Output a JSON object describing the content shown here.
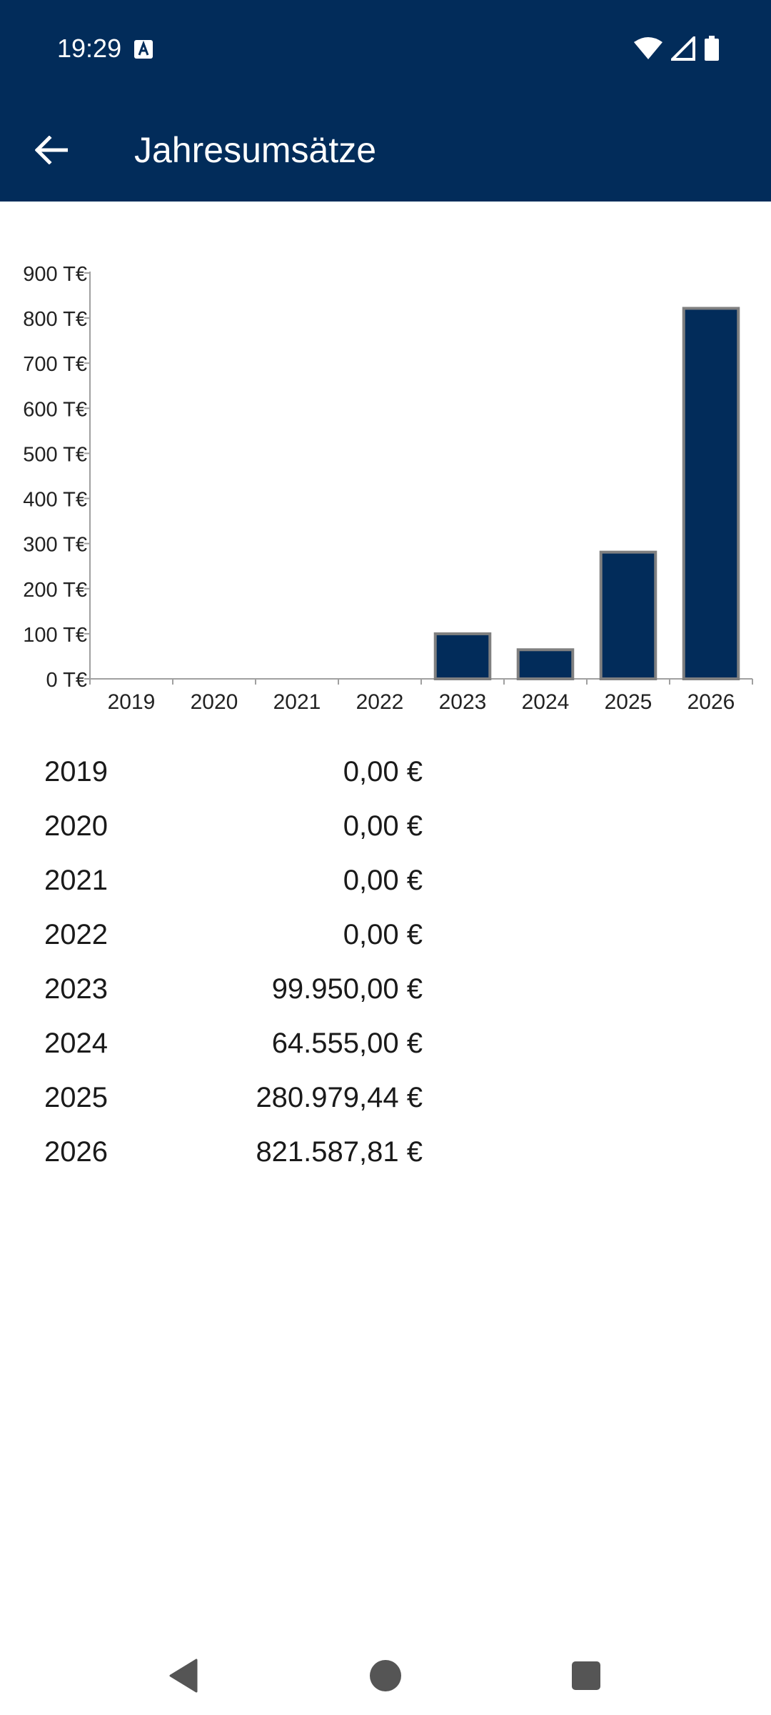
{
  "status_bar": {
    "time": "19:29"
  },
  "app_bar": {
    "title": "Jahresumsätze",
    "color": "#022c5a"
  },
  "chart_data": {
    "type": "bar",
    "categories": [
      "2019",
      "2020",
      "2021",
      "2022",
      "2023",
      "2024",
      "2025",
      "2026"
    ],
    "values": [
      0,
      0,
      0,
      0,
      99.95,
      64.555,
      280.97944,
      821.58781
    ],
    "ylim": [
      0,
      900
    ],
    "yticks": [
      "0 T€",
      "100 T€",
      "200 T€",
      "300 T€",
      "400 T€",
      "500 T€",
      "600 T€",
      "700 T€",
      "800 T€",
      "900 T€"
    ],
    "ytick_values": [
      0,
      100,
      200,
      300,
      400,
      500,
      600,
      700,
      800,
      900
    ],
    "bar_color": "#022c5a",
    "bar_border_color": "#808080",
    "grid": false,
    "title": "",
    "xlabel": "",
    "ylabel": ""
  },
  "table": {
    "rows": [
      {
        "year": "2019",
        "amount": "0,00 €"
      },
      {
        "year": "2020",
        "amount": "0,00 €"
      },
      {
        "year": "2021",
        "amount": "0,00 €"
      },
      {
        "year": "2022",
        "amount": "0,00 €"
      },
      {
        "year": "2023",
        "amount": "99.950,00 €"
      },
      {
        "year": "2024",
        "amount": "64.555,00 €"
      },
      {
        "year": "2025",
        "amount": "280.979,44 €"
      },
      {
        "year": "2026",
        "amount": "821.587,81 €"
      }
    ]
  },
  "icons": {
    "back": "arrow-back-icon",
    "wifi": "wifi-icon",
    "signal": "signal-icon",
    "battery": "battery-icon",
    "nav_back": "nav-back-icon",
    "nav_home": "nav-home-icon",
    "nav_recents": "nav-recents-icon"
  }
}
